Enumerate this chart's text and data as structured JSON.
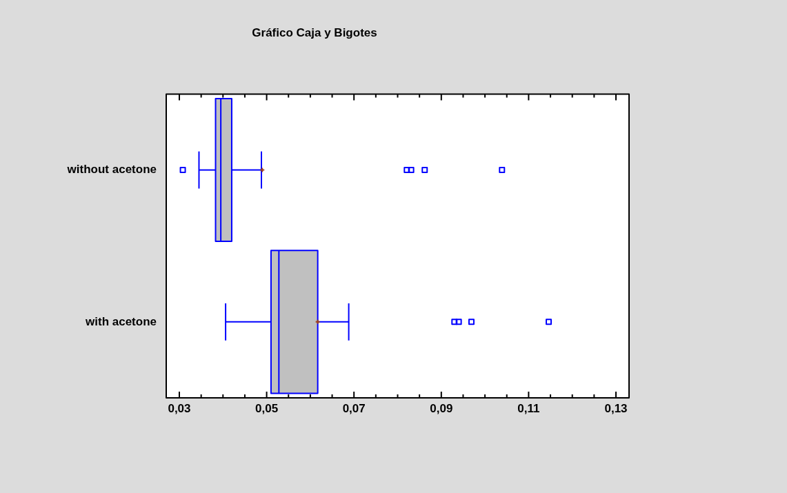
{
  "chart_data": {
    "type": "box",
    "title": "Gráfico Caja y Bigotes",
    "orientation": "horizontal",
    "categories": [
      "without acetone",
      "with acetone"
    ],
    "boxes": [
      {
        "low": 0.0345,
        "q1": 0.0383,
        "median": 0.0395,
        "q3": 0.042,
        "high": 0.0488,
        "mean": 0.049,
        "outliers": [
          0.0308,
          0.0821,
          0.0831,
          0.0862,
          0.1039
        ]
      },
      {
        "low": 0.0406,
        "q1": 0.051,
        "median": 0.0528,
        "q3": 0.0617,
        "high": 0.0688,
        "mean": 0.0617,
        "outliers": [
          0.093,
          0.094,
          0.0969,
          0.1146
        ]
      }
    ],
    "color": "#c0c0c0",
    "grid": false,
    "legend": false,
    "xlim": [
      0.027,
      0.133
    ],
    "xticks": [
      {
        "value": 0.03,
        "label": "0,03"
      },
      {
        "value": 0.035,
        "label": null
      },
      {
        "value": 0.04,
        "label": null
      },
      {
        "value": 0.045,
        "label": null
      },
      {
        "value": 0.05,
        "label": "0,05"
      },
      {
        "value": 0.055,
        "label": null
      },
      {
        "value": 0.06,
        "label": null
      },
      {
        "value": 0.065,
        "label": null
      },
      {
        "value": 0.07,
        "label": "0,07"
      },
      {
        "value": 0.075,
        "label": null
      },
      {
        "value": 0.08,
        "label": null
      },
      {
        "value": 0.085,
        "label": null
      },
      {
        "value": 0.09,
        "label": "0,09"
      },
      {
        "value": 0.095,
        "label": null
      },
      {
        "value": 0.1,
        "label": null
      },
      {
        "value": 0.105,
        "label": null
      },
      {
        "value": 0.11,
        "label": "0,11"
      },
      {
        "value": 0.115,
        "label": null
      },
      {
        "value": 0.12,
        "label": null
      },
      {
        "value": 0.125,
        "label": null
      },
      {
        "value": 0.13,
        "label": "0,13"
      }
    ]
  }
}
